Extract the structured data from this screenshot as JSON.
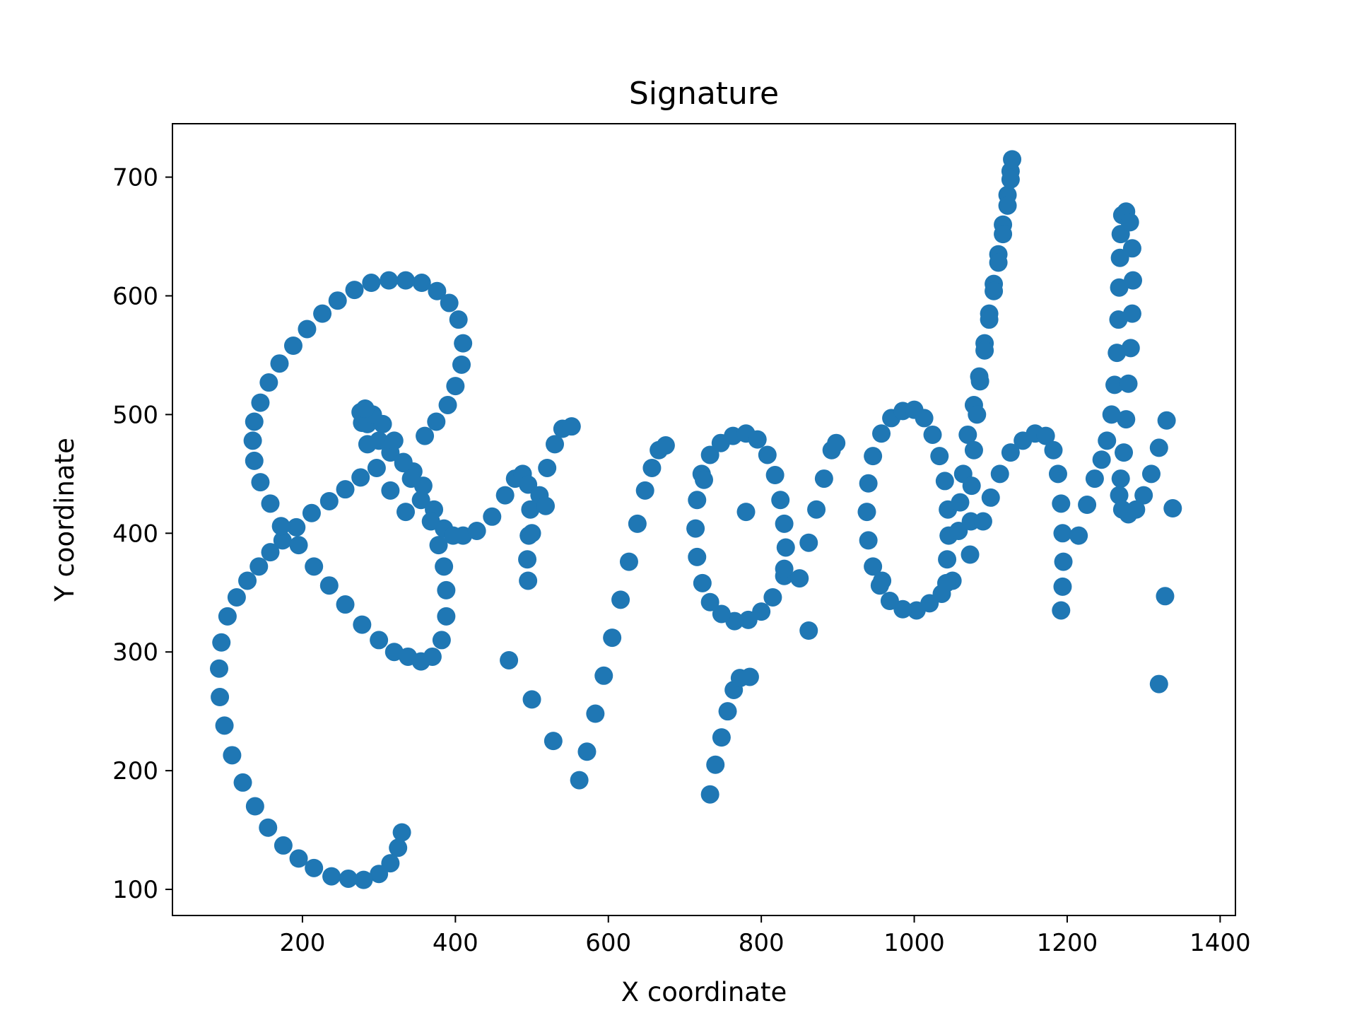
{
  "chart_data": {
    "type": "scatter",
    "title": "Signature",
    "xlabel": "X coordinate",
    "ylabel": "Y coordinate",
    "xlim": [
      30,
      1420
    ],
    "ylim": [
      78,
      745
    ],
    "xticks": [
      200,
      400,
      600,
      800,
      1000,
      1200,
      1400
    ],
    "yticks": [
      100,
      200,
      300,
      400,
      500,
      600,
      700
    ],
    "grid": false,
    "legend": "none",
    "colors": {
      "marker": "#1f77b4",
      "axes": "#000000",
      "background": "#ffffff"
    },
    "series": [
      {
        "points": [
          [
            330,
            148
          ],
          [
            325,
            135
          ],
          [
            315,
            122
          ],
          [
            300,
            113
          ],
          [
            280,
            108
          ],
          [
            260,
            109
          ],
          [
            238,
            111
          ],
          [
            215,
            118
          ],
          [
            195,
            126
          ],
          [
            175,
            137
          ],
          [
            155,
            152
          ],
          [
            138,
            170
          ],
          [
            122,
            190
          ],
          [
            108,
            213
          ],
          [
            98,
            238
          ],
          [
            92,
            262
          ],
          [
            91,
            286
          ],
          [
            94,
            308
          ],
          [
            102,
            330
          ],
          [
            114,
            346
          ],
          [
            128,
            360
          ],
          [
            143,
            372
          ],
          [
            158,
            384
          ],
          [
            174,
            394
          ],
          [
            192,
            405
          ],
          [
            212,
            417
          ],
          [
            235,
            427
          ],
          [
            256,
            437
          ],
          [
            276,
            447
          ],
          [
            335,
            418
          ],
          [
            315,
            436
          ],
          [
            297,
            455
          ],
          [
            285,
            475
          ],
          [
            278,
            493
          ],
          [
            276,
            502
          ],
          [
            285,
            492
          ],
          [
            300,
            478
          ],
          [
            315,
            468
          ],
          [
            332,
            459
          ],
          [
            345,
            452
          ],
          [
            358,
            440
          ],
          [
            372,
            420
          ],
          [
            385,
            404
          ],
          [
            397,
            398
          ],
          [
            410,
            398
          ],
          [
            428,
            402
          ],
          [
            448,
            414
          ],
          [
            465,
            432
          ],
          [
            478,
            446
          ],
          [
            488,
            450
          ],
          [
            495,
            441
          ],
          [
            498,
            420
          ],
          [
            496,
            398
          ],
          [
            494,
            378
          ],
          [
            495,
            360
          ],
          [
            500,
            400
          ],
          [
            510,
            432
          ],
          [
            520,
            455
          ],
          [
            530,
            475
          ],
          [
            540,
            488
          ],
          [
            552,
            490
          ],
          [
            360,
            482
          ],
          [
            375,
            494
          ],
          [
            390,
            508
          ],
          [
            400,
            524
          ],
          [
            408,
            542
          ],
          [
            410,
            560
          ],
          [
            404,
            580
          ],
          [
            392,
            594
          ],
          [
            376,
            604
          ],
          [
            356,
            611
          ],
          [
            335,
            613
          ],
          [
            313,
            613
          ],
          [
            290,
            611
          ],
          [
            268,
            605
          ],
          [
            246,
            596
          ],
          [
            226,
            585
          ],
          [
            206,
            572
          ],
          [
            188,
            558
          ],
          [
            170,
            543
          ],
          [
            156,
            527
          ],
          [
            145,
            510
          ],
          [
            137,
            494
          ],
          [
            135,
            478
          ],
          [
            137,
            461
          ],
          [
            145,
            443
          ],
          [
            158,
            425
          ],
          [
            172,
            406
          ],
          [
            195,
            390
          ],
          [
            215,
            372
          ],
          [
            235,
            356
          ],
          [
            256,
            340
          ],
          [
            278,
            323
          ],
          [
            300,
            310
          ],
          [
            320,
            300
          ],
          [
            338,
            296
          ],
          [
            355,
            292
          ],
          [
            370,
            296
          ],
          [
            382,
            310
          ],
          [
            388,
            330
          ],
          [
            388,
            352
          ],
          [
            385,
            372
          ],
          [
            378,
            390
          ],
          [
            368,
            410
          ],
          [
            355,
            428
          ],
          [
            342,
            446
          ],
          [
            332,
            460
          ],
          [
            320,
            478
          ],
          [
            305,
            492
          ],
          [
            292,
            500
          ],
          [
            282,
            505
          ],
          [
            562,
            192
          ],
          [
            572,
            216
          ],
          [
            583,
            248
          ],
          [
            594,
            280
          ],
          [
            605,
            312
          ],
          [
            616,
            344
          ],
          [
            627,
            376
          ],
          [
            638,
            408
          ],
          [
            648,
            436
          ],
          [
            657,
            455
          ],
          [
            666,
            470
          ],
          [
            675,
            474
          ],
          [
            733,
            180
          ],
          [
            740,
            205
          ],
          [
            748,
            228
          ],
          [
            756,
            250
          ],
          [
            764,
            268
          ],
          [
            772,
            278
          ],
          [
            785,
            279
          ],
          [
            830,
            364
          ],
          [
            815,
            346
          ],
          [
            800,
            334
          ],
          [
            783,
            327
          ],
          [
            765,
            326
          ],
          [
            748,
            332
          ],
          [
            733,
            342
          ],
          [
            723,
            358
          ],
          [
            716,
            380
          ],
          [
            714,
            404
          ],
          [
            716,
            428
          ],
          [
            722,
            450
          ],
          [
            733,
            466
          ],
          [
            747,
            476
          ],
          [
            763,
            482
          ],
          [
            780,
            484
          ],
          [
            795,
            479
          ],
          [
            808,
            466
          ],
          [
            818,
            449
          ],
          [
            825,
            428
          ],
          [
            830,
            408
          ],
          [
            832,
            388
          ],
          [
            830,
            370
          ],
          [
            850,
            362
          ],
          [
            862,
            392
          ],
          [
            872,
            420
          ],
          [
            882,
            446
          ],
          [
            892,
            470
          ],
          [
            898,
            476
          ],
          [
            1050,
            360
          ],
          [
            1036,
            349
          ],
          [
            1020,
            341
          ],
          [
            1003,
            335
          ],
          [
            985,
            336
          ],
          [
            968,
            343
          ],
          [
            955,
            356
          ],
          [
            946,
            372
          ],
          [
            940,
            394
          ],
          [
            938,
            418
          ],
          [
            940,
            442
          ],
          [
            946,
            465
          ],
          [
            957,
            484
          ],
          [
            970,
            497
          ],
          [
            985,
            503
          ],
          [
            1000,
            504
          ],
          [
            1013,
            497
          ],
          [
            1024,
            483
          ],
          [
            1033,
            465
          ],
          [
            1040,
            444
          ],
          [
            1044,
            420
          ],
          [
            1045,
            398
          ],
          [
            1043,
            378
          ],
          [
            1058,
            402
          ],
          [
            1060,
            426
          ],
          [
            1064,
            450
          ],
          [
            1070,
            483
          ],
          [
            1078,
            508
          ],
          [
            1085,
            532
          ],
          [
            1092,
            560
          ],
          [
            1098,
            585
          ],
          [
            1104,
            610
          ],
          [
            1110,
            635
          ],
          [
            1116,
            660
          ],
          [
            1122,
            685
          ],
          [
            1126,
            705
          ],
          [
            1128,
            715
          ],
          [
            1126,
            698
          ],
          [
            1122,
            676
          ],
          [
            1116,
            652
          ],
          [
            1110,
            628
          ],
          [
            1104,
            604
          ],
          [
            1098,
            580
          ],
          [
            1092,
            554
          ],
          [
            1086,
            528
          ],
          [
            1082,
            500
          ],
          [
            1078,
            470
          ],
          [
            1075,
            440
          ],
          [
            1074,
            410
          ],
          [
            1073,
            382
          ],
          [
            1090,
            410
          ],
          [
            1100,
            430
          ],
          [
            1112,
            450
          ],
          [
            1126,
            468
          ],
          [
            1142,
            478
          ],
          [
            1158,
            484
          ],
          [
            1172,
            482
          ],
          [
            1182,
            470
          ],
          [
            1188,
            450
          ],
          [
            1192,
            425
          ],
          [
            1194,
            400
          ],
          [
            1195,
            376
          ],
          [
            1194,
            355
          ],
          [
            1192,
            335
          ],
          [
            1215,
            398
          ],
          [
            1226,
            424
          ],
          [
            1236,
            446
          ],
          [
            1245,
            462
          ],
          [
            1252,
            478
          ],
          [
            1258,
            500
          ],
          [
            1262,
            525
          ],
          [
            1265,
            552
          ],
          [
            1267,
            580
          ],
          [
            1268,
            607
          ],
          [
            1269,
            632
          ],
          [
            1270,
            652
          ],
          [
            1272,
            668
          ],
          [
            1277,
            671
          ],
          [
            1282,
            662
          ],
          [
            1285,
            640
          ],
          [
            1286,
            613
          ],
          [
            1285,
            585
          ],
          [
            1283,
            556
          ],
          [
            1280,
            526
          ],
          [
            1277,
            496
          ],
          [
            1274,
            468
          ],
          [
            1270,
            446
          ],
          [
            1268,
            432
          ],
          [
            1272,
            420
          ],
          [
            1280,
            416
          ],
          [
            1290,
            420
          ],
          [
            1300,
            432
          ],
          [
            1310,
            450
          ],
          [
            1320,
            472
          ],
          [
            1330,
            495
          ],
          [
            470,
            293
          ],
          [
            500,
            260
          ],
          [
            528,
            225
          ],
          [
            725,
            445
          ],
          [
            780,
            418
          ],
          [
            862,
            318
          ],
          [
            958,
            360
          ],
          [
            1328,
            347
          ],
          [
            1320,
            273
          ],
          [
            1338,
            421
          ],
          [
            518,
            423
          ],
          [
            1042,
            358
          ]
        ]
      }
    ]
  }
}
